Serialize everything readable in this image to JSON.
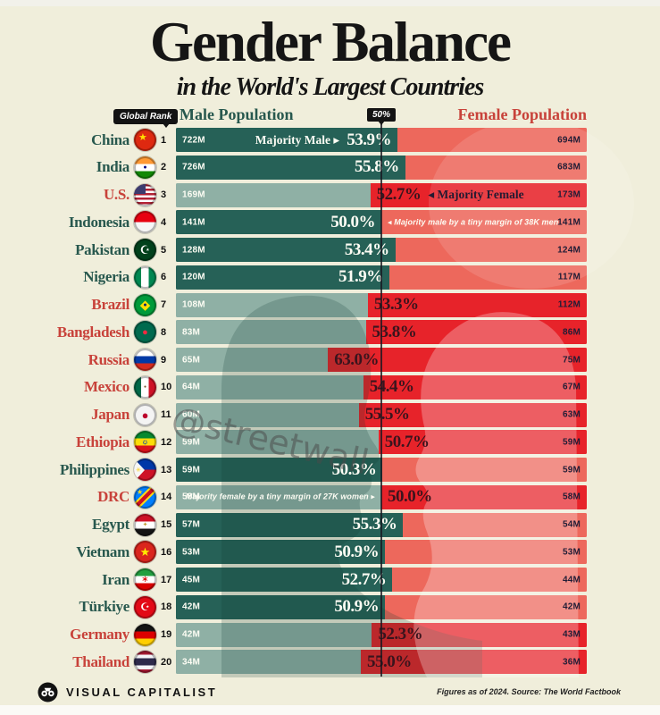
{
  "title": "Gender Balance",
  "subtitle": "in the World's Largest Countries",
  "header": {
    "global_rank_label": "Global Rank",
    "male_label": "Male Population",
    "center_label": "50%",
    "female_label": "Female Population"
  },
  "watermark": "@streetwall",
  "footer": {
    "brand": "VISUAL CAPITALIST",
    "source": "Figures as of 2024. Source: The World Factbook"
  },
  "colors": {
    "background": "#f0eedb",
    "male_dark": "#266157",
    "male_faded": "#8fb0a5",
    "female_bright": "#e7232a",
    "female_salmon": "#ed685c",
    "male_label_color": "#28584e",
    "female_label_color": "#c8423a",
    "badge_black": "#131313"
  },
  "rows": [
    {
      "rank": "1",
      "country": "China",
      "flag": "china",
      "male": "722M",
      "female": "694M",
      "majority": "male",
      "pct": "53.9%",
      "share": 53.9,
      "note": {
        "side": "left",
        "style": "strong",
        "text": "Majority Male ▸"
      }
    },
    {
      "rank": "2",
      "country": "India",
      "flag": "india",
      "male": "726M",
      "female": "683M",
      "majority": "male",
      "pct": "55.8%",
      "share": 55.8,
      "note": null
    },
    {
      "rank": "3",
      "country": "U.S.",
      "flag": "us",
      "male": "169M",
      "female": "173M",
      "majority": "female",
      "pct": "52.7%",
      "share": 52.7,
      "note": {
        "side": "right",
        "style": "strong",
        "text": "◂ Majority Female"
      }
    },
    {
      "rank": "4",
      "country": "Indonesia",
      "flag": "indonesia",
      "male": "141M",
      "female": "141M",
      "majority": "male",
      "pct": "50.0%",
      "share": 50.0,
      "note": {
        "side": "right",
        "style": "small",
        "text": "◂ Majority male by a tiny margin of 38K men"
      }
    },
    {
      "rank": "5",
      "country": "Pakistan",
      "flag": "pakistan",
      "male": "128M",
      "female": "124M",
      "majority": "male",
      "pct": "53.4%",
      "share": 53.4,
      "note": null
    },
    {
      "rank": "6",
      "country": "Nigeria",
      "flag": "nigeria",
      "male": "120M",
      "female": "117M",
      "majority": "male",
      "pct": "51.9%",
      "share": 51.9,
      "note": null
    },
    {
      "rank": "7",
      "country": "Brazil",
      "flag": "brazil",
      "male": "108M",
      "female": "112M",
      "majority": "female",
      "pct": "53.3%",
      "share": 53.3,
      "note": null
    },
    {
      "rank": "8",
      "country": "Bangladesh",
      "flag": "bangladesh",
      "male": "83M",
      "female": "86M",
      "majority": "female",
      "pct": "53.8%",
      "share": 53.8,
      "note": null
    },
    {
      "rank": "9",
      "country": "Russia",
      "flag": "russia",
      "male": "65M",
      "female": "75M",
      "majority": "female",
      "pct": "63.0%",
      "share": 63.0,
      "note": null
    },
    {
      "rank": "10",
      "country": "Mexico",
      "flag": "mexico",
      "male": "64M",
      "female": "67M",
      "majority": "female",
      "pct": "54.4%",
      "share": 54.4,
      "note": null
    },
    {
      "rank": "11",
      "country": "Japan",
      "flag": "japan",
      "male": "60M",
      "female": "63M",
      "majority": "female",
      "pct": "55.5%",
      "share": 55.5,
      "note": null
    },
    {
      "rank": "12",
      "country": "Ethiopia",
      "flag": "ethiopia",
      "male": "59M",
      "female": "59M",
      "majority": "female",
      "pct": "50.7%",
      "share": 50.7,
      "note": null
    },
    {
      "rank": "13",
      "country": "Philippines",
      "flag": "philippines",
      "male": "59M",
      "female": "59M",
      "majority": "male",
      "pct": "50.3%",
      "share": 50.3,
      "note": null
    },
    {
      "rank": "14",
      "country": "DRC",
      "flag": "drc",
      "male": "58M",
      "female": "58M",
      "majority": "female",
      "pct": "50.0%",
      "share": 50.0,
      "note": {
        "side": "left",
        "style": "small",
        "text": "Majority female by a tiny margin of 27K women ▸"
      }
    },
    {
      "rank": "15",
      "country": "Egypt",
      "flag": "egypt",
      "male": "57M",
      "female": "54M",
      "majority": "male",
      "pct": "55.3%",
      "share": 55.3,
      "note": null
    },
    {
      "rank": "16",
      "country": "Vietnam",
      "flag": "vietnam",
      "male": "53M",
      "female": "53M",
      "majority": "male",
      "pct": "50.9%",
      "share": 50.9,
      "note": null
    },
    {
      "rank": "17",
      "country": "Iran",
      "flag": "iran",
      "male": "45M",
      "female": "44M",
      "majority": "male",
      "pct": "52.7%",
      "share": 52.7,
      "note": null
    },
    {
      "rank": "18",
      "country": "Türkiye",
      "flag": "turkiye",
      "male": "42M",
      "female": "42M",
      "majority": "male",
      "pct": "50.9%",
      "share": 50.9,
      "note": null
    },
    {
      "rank": "19",
      "country": "Germany",
      "flag": "germany",
      "male": "42M",
      "female": "43M",
      "majority": "female",
      "pct": "52.3%",
      "share": 52.3,
      "note": null
    },
    {
      "rank": "20",
      "country": "Thailand",
      "flag": "thailand",
      "male": "34M",
      "female": "36M",
      "majority": "female",
      "pct": "55.0%",
      "share": 55.0,
      "note": null
    }
  ],
  "chart_data": {
    "type": "bar",
    "title": "Gender Balance in the World's Largest Countries",
    "orientation": "horizontal-diverging",
    "categories": [
      "China",
      "India",
      "U.S.",
      "Indonesia",
      "Pakistan",
      "Nigeria",
      "Brazil",
      "Bangladesh",
      "Russia",
      "Mexico",
      "Japan",
      "Ethiopia",
      "Philippines",
      "DRC",
      "Egypt",
      "Vietnam",
      "Iran",
      "Türkiye",
      "Germany",
      "Thailand"
    ],
    "global_rank": [
      1,
      2,
      3,
      4,
      5,
      6,
      7,
      8,
      9,
      10,
      11,
      12,
      13,
      14,
      15,
      16,
      17,
      18,
      19,
      20
    ],
    "series": [
      {
        "name": "Male Population (M)",
        "values": [
          722,
          726,
          169,
          141,
          128,
          120,
          108,
          83,
          65,
          64,
          60,
          59,
          59,
          58,
          57,
          53,
          45,
          42,
          42,
          34
        ]
      },
      {
        "name": "Female Population (M)",
        "values": [
          694,
          683,
          173,
          141,
          124,
          117,
          112,
          86,
          75,
          67,
          63,
          59,
          59,
          58,
          54,
          53,
          44,
          42,
          43,
          36
        ]
      },
      {
        "name": "Majority share (%)",
        "values": [
          53.9,
          55.8,
          52.7,
          50.0,
          53.4,
          51.9,
          53.3,
          53.8,
          63.0,
          54.4,
          55.5,
          50.7,
          50.3,
          50.0,
          55.3,
          50.9,
          52.7,
          50.9,
          52.3,
          55.0
        ]
      }
    ],
    "majority_sex": [
      "male",
      "male",
      "female",
      "male",
      "male",
      "male",
      "female",
      "female",
      "female",
      "female",
      "female",
      "female",
      "male",
      "female",
      "male",
      "male",
      "male",
      "male",
      "female",
      "female"
    ],
    "annotations": [
      "China: Majority Male ▸ 53.9%",
      "U.S.: 52.7% ◂ Majority Female",
      "Indonesia: ◂ Majority male by a tiny margin of 38K men",
      "DRC: Majority female by a tiny margin of 27K women ▸"
    ],
    "axis_center_label": "50%",
    "legend_position": "top",
    "source": "Figures as of 2024. Source: The World Factbook"
  }
}
